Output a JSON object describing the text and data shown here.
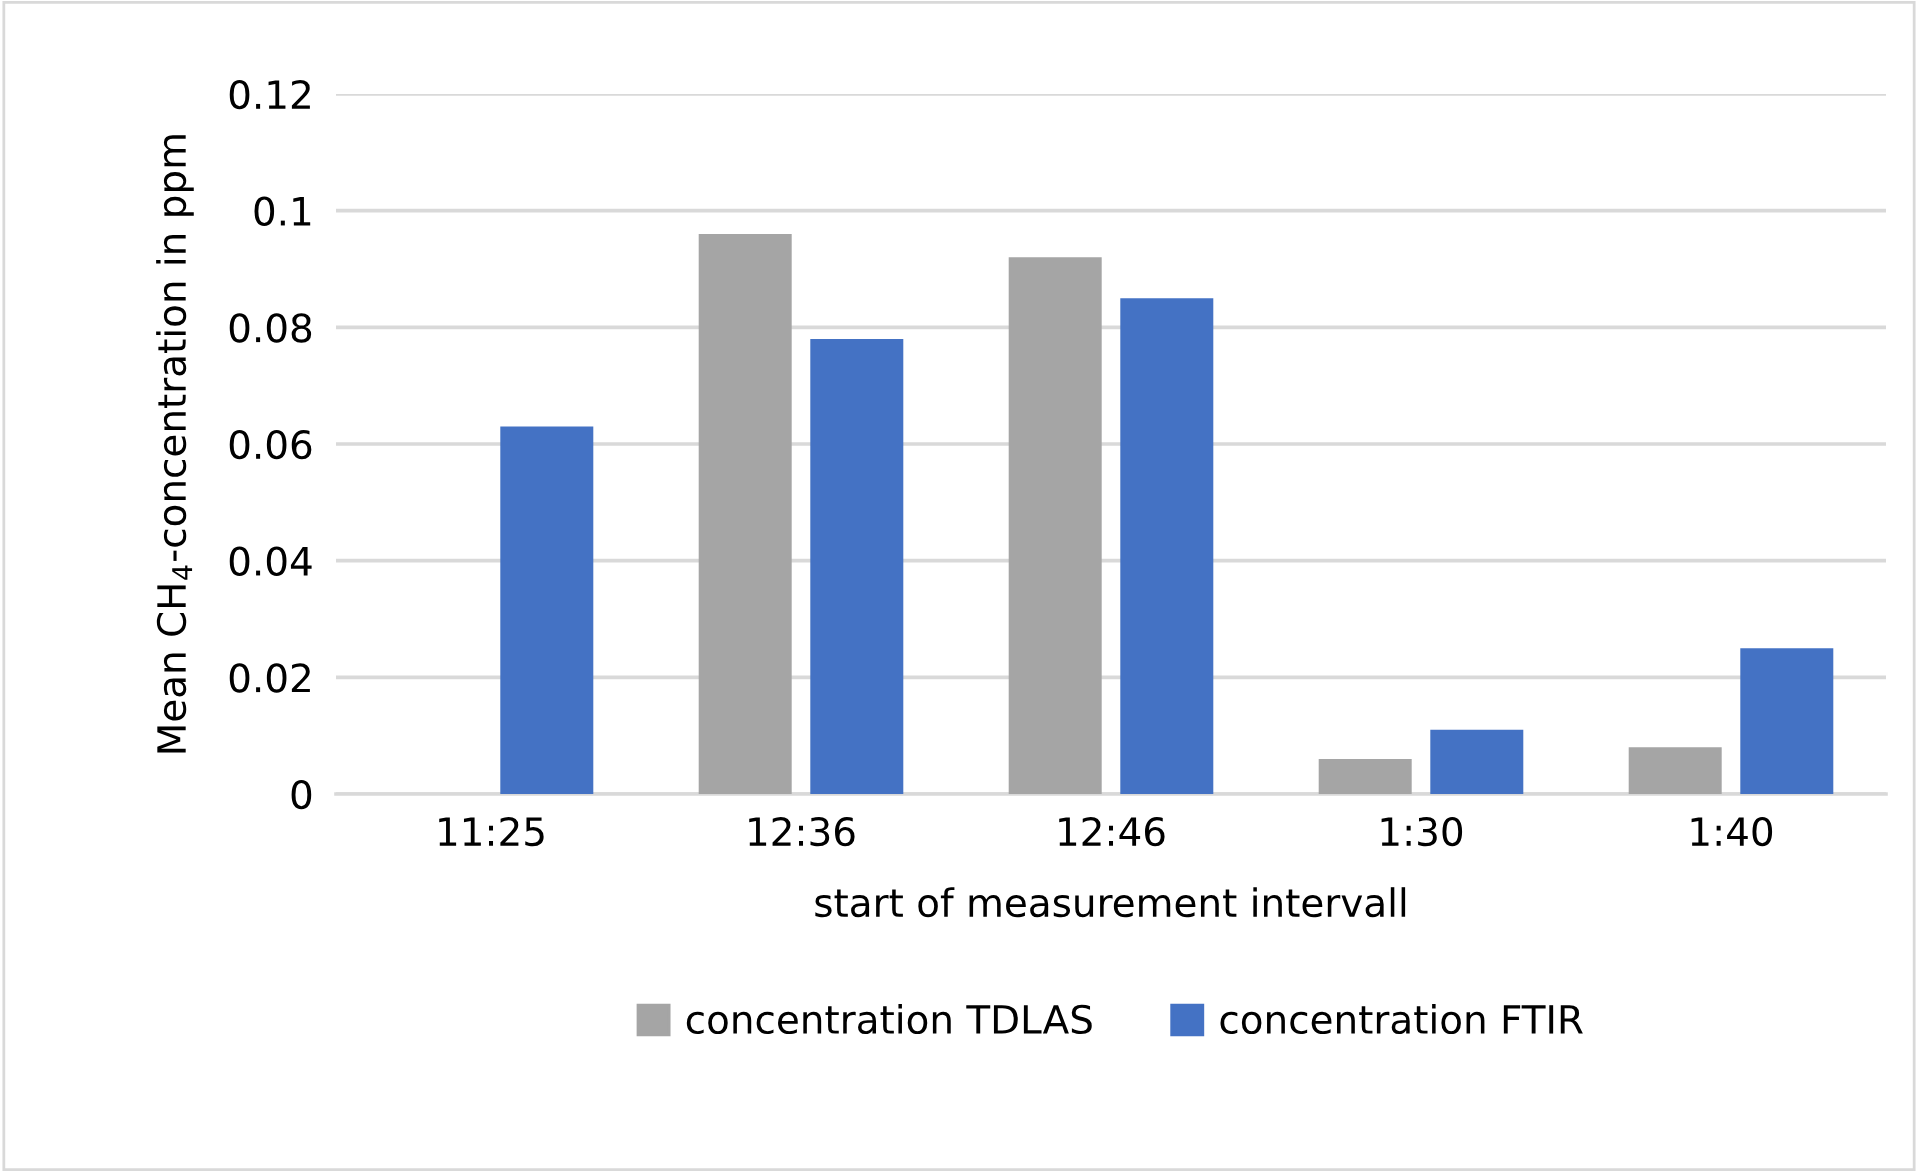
{
  "chart_data": {
    "type": "bar",
    "xlabel": "start of measurement intervall",
    "ylabel": "Mean CH$_{4}$-concentration in ppm",
    "categories": [
      "11:25",
      "12:36",
      "12:46",
      "1:30",
      "1:40"
    ],
    "series": [
      {
        "name": "concentration TDLAS",
        "color": "#a5a5a5",
        "values": [
          null,
          0.096,
          0.092,
          0.006,
          0.008
        ]
      },
      {
        "name": "concentration FTIR",
        "color": "#4472c4",
        "values": [
          0.063,
          0.078,
          0.085,
          0.011,
          0.025
        ]
      }
    ],
    "ylim": [
      0,
      0.12
    ],
    "yticks": [
      0,
      0.02,
      0.04,
      0.06,
      0.08,
      0.1,
      0.12
    ],
    "grid": "y",
    "legend": "bottom"
  }
}
